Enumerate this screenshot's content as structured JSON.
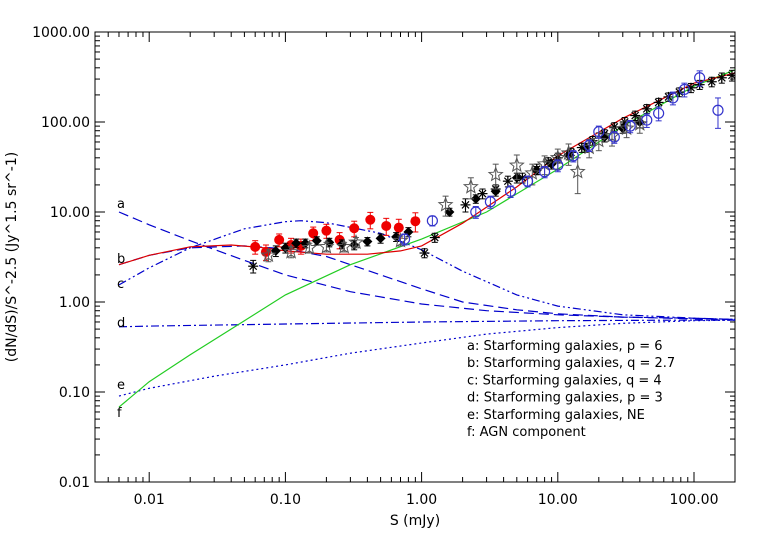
{
  "chart_data": {
    "type": "scatter",
    "title": "",
    "xlabel": "S (mJy)",
    "ylabel": "(dN/dS)/S^-2.5 (Jy^1.5 sr^-1)",
    "xscale": "log",
    "yscale": "log",
    "xlim": [
      0.004,
      200
    ],
    "ylim": [
      0.01,
      1000
    ],
    "x_tick_labels": [
      "0.01",
      "0.10",
      "1.00",
      "10.00",
      "100.00"
    ],
    "x_tick_values": [
      0.01,
      0.1,
      1,
      10,
      100
    ],
    "y_tick_labels": [
      "0.01",
      "0.10",
      "1.00",
      "10.00",
      "100.00",
      "1000.00"
    ],
    "y_tick_values": [
      0.01,
      0.1,
      1,
      10,
      100,
      1000
    ],
    "legend_placement": "bottom-right",
    "legend": [
      "a: Starforming galaxies, p = 6",
      "b: Starforming galaxies, q = 2.7",
      "c: Starforming galaxies, q = 4",
      "d: Starforming galaxies, p = 3",
      "e: Starforming galaxies, NE",
      "f: AGN component"
    ],
    "curve_letters": [
      "a",
      "b",
      "c",
      "d",
      "e",
      "f"
    ],
    "colors": {
      "model": "#0000cc",
      "agn": "#22cc22",
      "red_model": "#dd0000",
      "red_points": "#ee0000",
      "black_points": "#000000",
      "open_circles": "#3333cc",
      "stars": "#555555"
    },
    "models": [
      {
        "letter": "a",
        "style": "dashed",
        "x": [
          0.006,
          0.01,
          0.02,
          0.05,
          0.1,
          0.3,
          1,
          3,
          10,
          30,
          100,
          200
        ],
        "y": [
          10,
          7.2,
          4.8,
          2.9,
          2.0,
          1.3,
          0.95,
          0.8,
          0.72,
          0.68,
          0.66,
          0.64
        ]
      },
      {
        "letter": "b",
        "style": "dashed",
        "x": [
          0.006,
          0.01,
          0.02,
          0.05,
          0.1,
          0.2,
          0.5,
          1,
          2,
          5,
          10,
          30,
          100,
          200
        ],
        "y": [
          2.6,
          3.3,
          4.0,
          4.2,
          3.9,
          3.2,
          2.0,
          1.4,
          1.0,
          0.82,
          0.74,
          0.68,
          0.65,
          0.64
        ]
      },
      {
        "letter": "c",
        "style": "dashdot",
        "x": [
          0.006,
          0.01,
          0.02,
          0.05,
          0.1,
          0.13,
          0.2,
          0.5,
          1,
          2,
          5,
          10,
          30,
          100,
          200
        ],
        "y": [
          1.55,
          2.4,
          4.0,
          6.5,
          7.8,
          8.0,
          7.6,
          5.8,
          3.8,
          2.2,
          1.2,
          0.9,
          0.72,
          0.66,
          0.64
        ]
      },
      {
        "letter": "d",
        "style": "dashdot",
        "x": [
          0.006,
          0.01,
          0.1,
          1,
          10,
          100,
          200
        ],
        "y": [
          0.53,
          0.54,
          0.57,
          0.6,
          0.62,
          0.63,
          0.63
        ]
      },
      {
        "letter": "e",
        "style": "dotted",
        "x": [
          0.006,
          0.01,
          0.03,
          0.1,
          0.3,
          1,
          3,
          10,
          30,
          100,
          200
        ],
        "y": [
          0.09,
          0.11,
          0.15,
          0.2,
          0.27,
          0.35,
          0.44,
          0.52,
          0.58,
          0.62,
          0.63
        ]
      },
      {
        "letter": "f",
        "style": "solid-green",
        "x": [
          0.006,
          0.01,
          0.02,
          0.05,
          0.1,
          0.3,
          1,
          3,
          10,
          30,
          100,
          200
        ],
        "y": [
          0.068,
          0.13,
          0.26,
          0.62,
          1.2,
          2.6,
          5.0,
          10,
          30,
          90,
          250,
          380
        ]
      },
      {
        "letter": "",
        "style": "solid-red",
        "x": [
          0.006,
          0.01,
          0.02,
          0.04,
          0.07,
          0.1,
          0.2,
          0.4,
          0.7,
          1,
          2,
          5,
          10,
          30,
          100,
          200
        ],
        "y": [
          2.6,
          3.3,
          4.1,
          4.3,
          4.0,
          3.7,
          3.4,
          3.4,
          3.7,
          4.2,
          7.5,
          19,
          42,
          110,
          270,
          350
        ]
      }
    ],
    "series": [
      {
        "marker": "red-filled-circle",
        "x": [
          0.06,
          0.072,
          0.09,
          0.11,
          0.13,
          0.16,
          0.2,
          0.25,
          0.32,
          0.42,
          0.55,
          0.68,
          0.9
        ],
        "y": [
          4.1,
          3.6,
          4.9,
          4.3,
          4.2,
          5.8,
          6.2,
          4.9,
          6.6,
          8.2,
          7.0,
          6.7,
          7.9
        ],
        "err": [
          0.7,
          0.7,
          0.8,
          0.8,
          0.8,
          1.0,
          1.1,
          1.0,
          1.3,
          1.7,
          1.5,
          1.6,
          1.9
        ]
      },
      {
        "marker": "black-filled-diamond",
        "x": [
          0.085,
          0.1,
          0.12,
          0.14,
          0.17,
          0.21,
          0.26,
          0.32,
          0.4,
          0.5,
          0.65,
          0.8,
          1.6,
          2.5,
          3.5,
          5,
          7,
          9,
          12,
          16,
          22,
          30,
          40
        ],
        "y": [
          3.7,
          4.0,
          4.5,
          4.5,
          4.8,
          4.6,
          4.4,
          4.3,
          4.7,
          5.1,
          5.3,
          6.0,
          10,
          14,
          17,
          24,
          29,
          34,
          43,
          52,
          68,
          85,
          100
        ],
        "err": [
          0.5,
          0.5,
          0.5,
          0.5,
          0.5,
          0.5,
          0.5,
          0.5,
          0.5,
          0.6,
          0.6,
          0.7,
          1,
          1.5,
          2,
          3,
          3,
          4,
          5,
          6,
          8,
          10,
          14
        ]
      },
      {
        "marker": "black-asterisk",
        "x": [
          0.058,
          1.05,
          1.25,
          2.1,
          2.8,
          3.5,
          4.3,
          5.5,
          7,
          8.5,
          10,
          12.5,
          15,
          18,
          22,
          26,
          31,
          37,
          45,
          55,
          65,
          78,
          95,
          110,
          135,
          160,
          190
        ],
        "y": [
          2.5,
          3.5,
          5.2,
          12,
          16,
          18,
          22,
          24,
          30,
          36,
          40,
          46,
          52,
          62,
          74,
          88,
          100,
          118,
          140,
          165,
          190,
          215,
          240,
          260,
          280,
          310,
          330
        ],
        "err": [
          0.4,
          0.4,
          0.6,
          2,
          2,
          2,
          3,
          3,
          4,
          4,
          5,
          5,
          6,
          7,
          8,
          10,
          12,
          14,
          16,
          18,
          20,
          24,
          28,
          30,
          34,
          40,
          45
        ]
      },
      {
        "marker": "open-star",
        "x": [
          0.075,
          0.11,
          0.15,
          0.2,
          0.27,
          0.33,
          0.7,
          1.5,
          2.3,
          3.5,
          5,
          6.5,
          8,
          10,
          12,
          14,
          17,
          20,
          25,
          32,
          40
        ],
        "y": [
          3.3,
          3.6,
          4.0,
          4.1,
          4.1,
          4.6,
          4.8,
          12,
          19,
          26,
          33,
          27,
          34,
          40,
          45,
          28,
          52,
          62,
          70,
          85,
          95
        ],
        "err": [
          0.5,
          0.5,
          0.5,
          0.5,
          0.5,
          0.6,
          0.6,
          3,
          5,
          8,
          10,
          7,
          8,
          10,
          12,
          12,
          12,
          14,
          16,
          18,
          20
        ]
      },
      {
        "marker": "open-circle",
        "x": [
          0.75,
          1.2,
          2.5,
          3.2,
          4.5,
          6,
          8,
          10,
          13,
          17,
          20,
          26,
          34,
          45,
          55,
          70,
          85,
          110,
          150
        ],
        "y": [
          5.0,
          8.0,
          10,
          13,
          17,
          22,
          28,
          33,
          42,
          55,
          78,
          68,
          90,
          105,
          125,
          185,
          230,
          310,
          135
        ],
        "err": [
          0.7,
          1,
          1.5,
          2,
          2.5,
          3,
          4,
          5,
          6,
          8,
          12,
          10,
          14,
          18,
          22,
          30,
          40,
          60,
          50
        ]
      }
    ]
  }
}
